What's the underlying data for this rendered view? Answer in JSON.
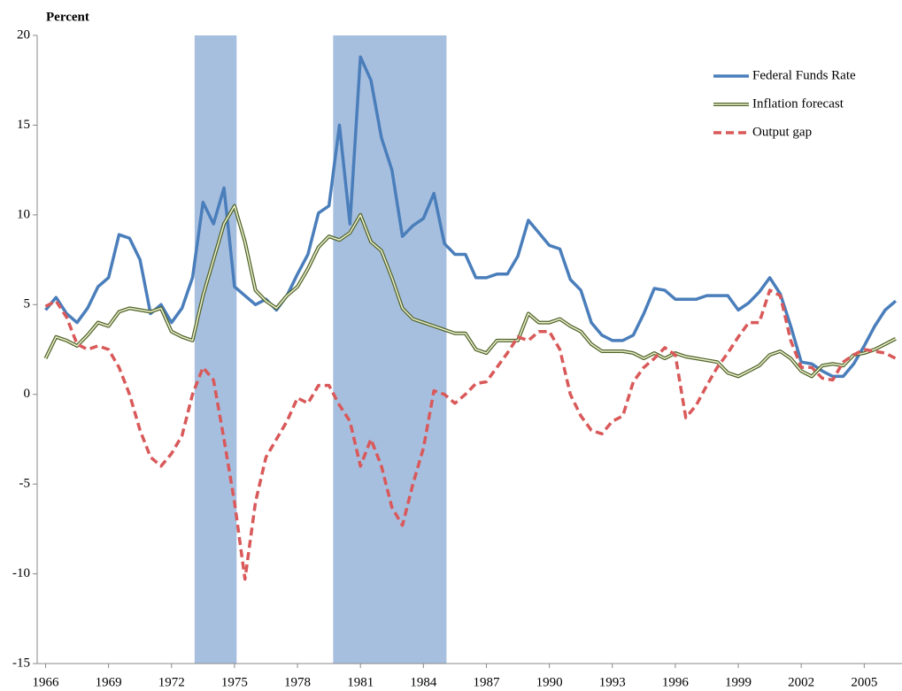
{
  "chart_data": {
    "type": "line",
    "title": "Percent",
    "x": [
      1966,
      1966.5,
      1967,
      1967.5,
      1968,
      1968.5,
      1969,
      1969.5,
      1970,
      1970.5,
      1971,
      1971.5,
      1972,
      1972.5,
      1973,
      1973.5,
      1974,
      1974.5,
      1975,
      1975.5,
      1976,
      1976.5,
      1977,
      1977.5,
      1978,
      1978.5,
      1979,
      1979.5,
      1980,
      1980.5,
      1981,
      1981.5,
      1982,
      1982.5,
      1983,
      1983.5,
      1984,
      1984.5,
      1985,
      1985.5,
      1986,
      1986.5,
      1987,
      1987.5,
      1988,
      1988.5,
      1989,
      1989.5,
      1990,
      1990.5,
      1991,
      1991.5,
      1992,
      1992.5,
      1993,
      1993.5,
      1994,
      1994.5,
      1995,
      1995.5,
      1996,
      1996.5,
      1997,
      1997.5,
      1998,
      1998.5,
      1999,
      1999.5,
      2000,
      2000.5,
      2001,
      2001.5,
      2002,
      2002.5,
      2003,
      2003.5,
      2004,
      2004.5,
      2005,
      2005.5,
      2006,
      2006.5
    ],
    "series": [
      {
        "name": "Federal Funds Rate",
        "color": "#4a7ebb",
        "style": "solid",
        "values": [
          4.7,
          5.4,
          4.5,
          4.0,
          4.8,
          6.0,
          6.5,
          8.9,
          8.7,
          7.5,
          4.5,
          5.0,
          4.0,
          4.8,
          6.5,
          10.7,
          9.5,
          11.5,
          6.0,
          5.5,
          5.0,
          5.3,
          4.7,
          5.5,
          6.7,
          7.8,
          10.1,
          10.5,
          15.0,
          9.5,
          18.8,
          17.5,
          14.3,
          12.5,
          8.8,
          9.4,
          9.8,
          11.2,
          8.4,
          7.8,
          7.8,
          6.5,
          6.5,
          6.7,
          6.7,
          7.7,
          9.7,
          9.0,
          8.3,
          8.1,
          6.4,
          5.8,
          4.0,
          3.3,
          3.0,
          3.0,
          3.3,
          4.5,
          5.9,
          5.8,
          5.3,
          5.3,
          5.3,
          5.5,
          5.5,
          5.5,
          4.7,
          5.1,
          5.7,
          6.5,
          5.6,
          3.8,
          1.8,
          1.7,
          1.3,
          1.0,
          1.0,
          1.7,
          2.7,
          3.8,
          4.7,
          5.2
        ]
      },
      {
        "name": "Inflation forecast",
        "color": "#4f6228",
        "style": "double",
        "values": [
          2.0,
          3.2,
          3.0,
          2.7,
          3.3,
          4.0,
          3.8,
          4.6,
          4.8,
          4.7,
          4.6,
          4.8,
          3.5,
          3.2,
          3.0,
          5.5,
          7.5,
          9.5,
          10.5,
          8.5,
          5.8,
          5.2,
          4.8,
          5.5,
          6.0,
          7.0,
          8.2,
          8.8,
          8.6,
          9.0,
          10.0,
          8.5,
          8.0,
          6.5,
          4.8,
          4.2,
          4.0,
          3.8,
          3.6,
          3.4,
          3.4,
          2.5,
          2.3,
          3.0,
          3.0,
          3.0,
          4.5,
          4.0,
          4.0,
          4.2,
          3.8,
          3.5,
          2.8,
          2.4,
          2.4,
          2.4,
          2.3,
          2.0,
          2.3,
          2.0,
          2.3,
          2.1,
          2.0,
          1.9,
          1.8,
          1.2,
          1.0,
          1.3,
          1.6,
          2.2,
          2.4,
          2.0,
          1.3,
          1.0,
          1.6,
          1.7,
          1.6,
          2.2,
          2.3,
          2.5,
          2.8,
          3.1
        ]
      },
      {
        "name": "Output gap",
        "color": "#d9595a",
        "style": "dashed",
        "values": [
          4.9,
          5.2,
          4.3,
          2.8,
          2.5,
          2.7,
          2.5,
          1.5,
          0.0,
          -2.0,
          -3.5,
          -4.0,
          -3.3,
          -2.3,
          0.0,
          1.5,
          0.8,
          -2.5,
          -6.0,
          -10.3,
          -6.0,
          -3.5,
          -2.5,
          -1.5,
          -0.2,
          -0.5,
          0.5,
          0.5,
          -0.6,
          -1.5,
          -4.0,
          -2.5,
          -4.0,
          -6.3,
          -7.3,
          -5.0,
          -3.0,
          0.2,
          0.0,
          -0.5,
          0.0,
          0.6,
          0.7,
          1.5,
          2.3,
          3.2,
          3.0,
          3.5,
          3.5,
          2.5,
          0.0,
          -1.2,
          -2.0,
          -2.2,
          -1.5,
          -1.2,
          0.7,
          1.5,
          2.0,
          2.6,
          2.2,
          -1.3,
          -0.6,
          0.5,
          1.5,
          2.3,
          3.2,
          4.0,
          4.0,
          5.8,
          5.5,
          3.0,
          1.5,
          1.5,
          0.9,
          0.8,
          1.8,
          2.2,
          2.5,
          2.4,
          2.3,
          2.0
        ]
      }
    ],
    "shaded_periods": [
      [
        1973.1,
        1975.1
      ],
      [
        1979.7,
        1985.1
      ]
    ],
    "shade_color": "#a7bfdf",
    "xlim": [
      1965.6,
      2006.8
    ],
    "ylim": [
      -15,
      20
    ],
    "xticks": [
      1966,
      1969,
      1972,
      1975,
      1978,
      1981,
      1984,
      1987,
      1990,
      1993,
      1996,
      1999,
      2002,
      2005
    ],
    "yticks": [
      -15,
      -10,
      -5,
      0,
      5,
      10,
      15,
      20
    ],
    "legend": "top-right"
  }
}
